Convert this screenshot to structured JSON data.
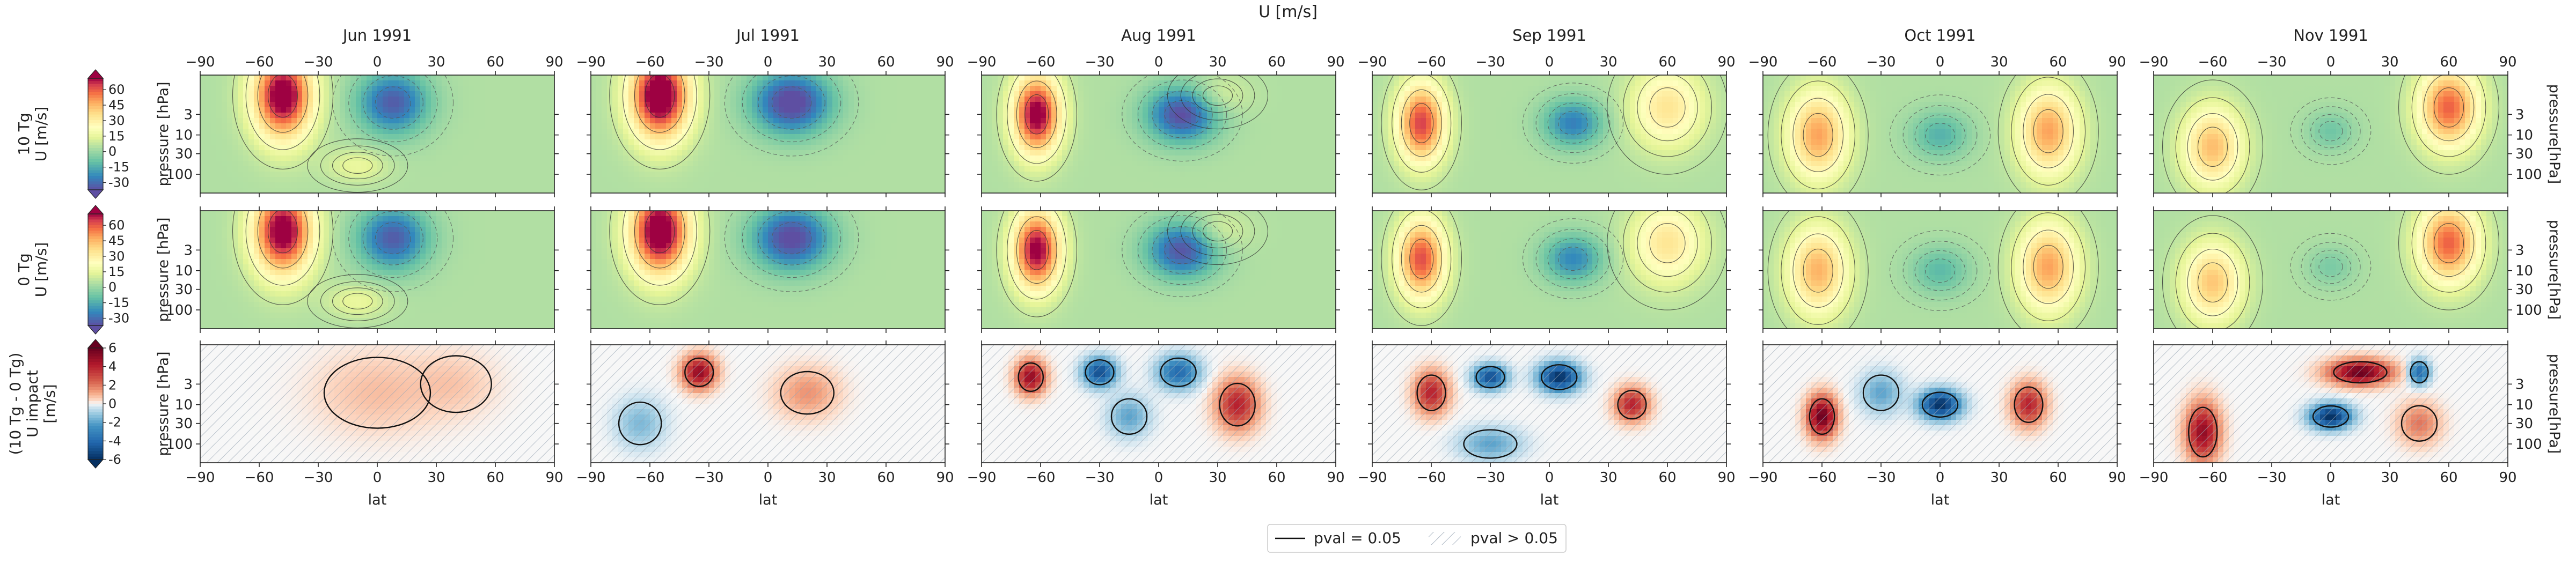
{
  "suptitle": "U [m/s]",
  "months": [
    "Jun 1991",
    "Jul 1991",
    "Aug 1991",
    "Sep 1991",
    "Oct 1991",
    "Nov 1991"
  ],
  "rows": [
    {
      "label_lines": [
        "10 Tg",
        "U [m/s]"
      ],
      "ylabel": "pressure [hPa]",
      "kind": "wind"
    },
    {
      "label_lines": [
        "0 Tg",
        "U [m/s]"
      ],
      "ylabel": "pressure [hPa]",
      "kind": "wind"
    },
    {
      "label_lines": [
        "(10 Tg - 0 Tg)",
        "U impact",
        "[m/s]"
      ],
      "ylabel": "pressure [hPa]",
      "kind": "impact"
    }
  ],
  "right_ylabel": "pressure[hPa]",
  "xlabel": "lat",
  "colorbars": [
    {
      "ticks": [
        "60",
        "45",
        "30",
        "15",
        "0",
        "-15",
        "-30"
      ],
      "range": [
        -37,
        71
      ]
    },
    {
      "ticks": [
        "60",
        "45",
        "30",
        "15",
        "0",
        "-15",
        "-30"
      ],
      "range": [
        -37,
        71
      ]
    },
    {
      "ticks": [
        "6",
        "4",
        "2",
        "0",
        "-2",
        "-4",
        "-6"
      ],
      "range": [
        -6,
        6
      ]
    }
  ],
  "chart_data": {
    "type": "heatmap",
    "x": {
      "label": "lat",
      "ticks": [
        -90,
        -60,
        -30,
        0,
        30,
        60,
        90
      ],
      "tick_labels": [
        "−90",
        "−60",
        "−30",
        "0",
        "30",
        "60",
        "90"
      ],
      "range": [
        -90,
        90
      ]
    },
    "y": {
      "label": "pressure [hPa]",
      "scale": "log",
      "inverted": true,
      "ticks": [
        3,
        10,
        30,
        100
      ],
      "range": [
        0.3,
        300
      ]
    },
    "series": [
      {
        "row": "10 Tg",
        "month": "Jun 1991",
        "features": [
          {
            "lat": -48,
            "p": 1,
            "u": 75,
            "wlat": 15,
            "wdec": 1.1
          },
          {
            "lat": 8,
            "p": 1.5,
            "u": -38,
            "wlat": 18,
            "wdec": 0.8
          },
          {
            "lat": -10,
            "p": 60,
            "u": 12,
            "wlat": 15,
            "wdec": 0.4
          }
        ]
      },
      {
        "row": "10 Tg",
        "month": "Jul 1991",
        "features": [
          {
            "lat": -55,
            "p": 1,
            "u": 80,
            "wlat": 15,
            "wdec": 1.1
          },
          {
            "lat": 12,
            "p": 1.5,
            "u": -45,
            "wlat": 20,
            "wdec": 0.8
          }
        ]
      },
      {
        "row": "10 Tg",
        "month": "Aug 1991",
        "features": [
          {
            "lat": -62,
            "p": 3,
            "u": 72,
            "wlat": 12,
            "wdec": 1
          },
          {
            "lat": 12,
            "p": 3,
            "u": -42,
            "wlat": 18,
            "wdec": 0.7
          },
          {
            "lat": 30,
            "p": 1,
            "u": 10,
            "wlat": 15,
            "wdec": 0.5
          }
        ]
      },
      {
        "row": "10 Tg",
        "month": "Sep 1991",
        "features": [
          {
            "lat": -65,
            "p": 5,
            "u": 60,
            "wlat": 12,
            "wdec": 1
          },
          {
            "lat": 12,
            "p": 5,
            "u": -30,
            "wlat": 15,
            "wdec": 0.6
          },
          {
            "lat": 60,
            "p": 2,
            "u": 30,
            "wlat": 18,
            "wdec": 1
          }
        ]
      },
      {
        "row": "10 Tg",
        "month": "Oct 1991",
        "features": [
          {
            "lat": -62,
            "p": 10,
            "u": 45,
            "wlat": 15,
            "wdec": 1.1
          },
          {
            "lat": 0,
            "p": 10,
            "u": -18,
            "wlat": 15,
            "wdec": 0.6
          },
          {
            "lat": 55,
            "p": 8,
            "u": 45,
            "wlat": 15,
            "wdec": 1.1
          }
        ]
      },
      {
        "row": "10 Tg",
        "month": "Nov 1991",
        "features": [
          {
            "lat": -60,
            "p": 20,
            "u": 40,
            "wlat": 15,
            "wdec": 1
          },
          {
            "lat": 0,
            "p": 8,
            "u": -12,
            "wlat": 12,
            "wdec": 0.5
          },
          {
            "lat": 60,
            "p": 2,
            "u": 55,
            "wlat": 15,
            "wdec": 1
          }
        ]
      },
      {
        "row": "0 Tg",
        "month": "Jun 1991",
        "features": [
          {
            "lat": -48,
            "p": 1,
            "u": 74,
            "wlat": 15,
            "wdec": 1.1
          },
          {
            "lat": 8,
            "p": 1.5,
            "u": -38,
            "wlat": 18,
            "wdec": 0.8
          },
          {
            "lat": -10,
            "p": 60,
            "u": 12,
            "wlat": 15,
            "wdec": 0.4
          }
        ]
      },
      {
        "row": "0 Tg",
        "month": "Jul 1991",
        "features": [
          {
            "lat": -55,
            "p": 1,
            "u": 78,
            "wlat": 15,
            "wdec": 1.1
          },
          {
            "lat": 12,
            "p": 1.5,
            "u": -43,
            "wlat": 20,
            "wdec": 0.8
          }
        ]
      },
      {
        "row": "0 Tg",
        "month": "Aug 1991",
        "features": [
          {
            "lat": -62,
            "p": 3,
            "u": 70,
            "wlat": 12,
            "wdec": 1
          },
          {
            "lat": 12,
            "p": 3,
            "u": -40,
            "wlat": 18,
            "wdec": 0.7
          },
          {
            "lat": 30,
            "p": 1,
            "u": 10,
            "wlat": 15,
            "wdec": 0.5
          }
        ]
      },
      {
        "row": "0 Tg",
        "month": "Sep 1991",
        "features": [
          {
            "lat": -65,
            "p": 5,
            "u": 58,
            "wlat": 12,
            "wdec": 1
          },
          {
            "lat": 12,
            "p": 5,
            "u": -28,
            "wlat": 15,
            "wdec": 0.6
          },
          {
            "lat": 60,
            "p": 2,
            "u": 30,
            "wlat": 18,
            "wdec": 1
          }
        ]
      },
      {
        "row": "0 Tg",
        "month": "Oct 1991",
        "features": [
          {
            "lat": -62,
            "p": 10,
            "u": 42,
            "wlat": 15,
            "wdec": 1.1
          },
          {
            "lat": 0,
            "p": 10,
            "u": -16,
            "wlat": 15,
            "wdec": 0.6
          },
          {
            "lat": 55,
            "p": 8,
            "u": 45,
            "wlat": 15,
            "wdec": 1.1
          }
        ]
      },
      {
        "row": "0 Tg",
        "month": "Nov 1991",
        "features": [
          {
            "lat": -60,
            "p": 20,
            "u": 38,
            "wlat": 15,
            "wdec": 1
          },
          {
            "lat": 0,
            "p": 8,
            "u": -10,
            "wlat": 12,
            "wdec": 0.5
          },
          {
            "lat": 60,
            "p": 2,
            "u": 55,
            "wlat": 15,
            "wdec": 1
          }
        ]
      },
      {
        "row": "10 Tg - 0 Tg",
        "month": "Jun 1991",
        "features": [
          {
            "lat": 0,
            "p": 5,
            "u": 0.8,
            "wlat": 30,
            "wdec": 1
          },
          {
            "lat": 40,
            "p": 3,
            "u": 0.6,
            "wlat": 20,
            "wdec": 0.8
          }
        ]
      },
      {
        "row": "10 Tg - 0 Tg",
        "month": "Jul 1991",
        "features": [
          {
            "lat": -35,
            "p": 1.5,
            "u": 5,
            "wlat": 8,
            "wdec": 0.4
          },
          {
            "lat": -65,
            "p": 30,
            "u": -1.5,
            "wlat": 12,
            "wdec": 0.6
          },
          {
            "lat": 20,
            "p": 5,
            "u": 1.5,
            "wlat": 15,
            "wdec": 0.6
          }
        ]
      },
      {
        "row": "10 Tg - 0 Tg",
        "month": "Aug 1991",
        "features": [
          {
            "lat": -65,
            "p": 2,
            "u": 5,
            "wlat": 7,
            "wdec": 0.4
          },
          {
            "lat": -30,
            "p": 1.5,
            "u": -5,
            "wlat": 8,
            "wdec": 0.35
          },
          {
            "lat": 10,
            "p": 1.5,
            "u": -4,
            "wlat": 10,
            "wdec": 0.4
          },
          {
            "lat": 40,
            "p": 10,
            "u": 4,
            "wlat": 10,
            "wdec": 0.6
          },
          {
            "lat": -15,
            "p": 20,
            "u": -2,
            "wlat": 10,
            "wdec": 0.5
          }
        ]
      },
      {
        "row": "10 Tg - 0 Tg",
        "month": "Sep 1991",
        "features": [
          {
            "lat": -60,
            "p": 5,
            "u": 4,
            "wlat": 8,
            "wdec": 0.5
          },
          {
            "lat": -30,
            "p": 2,
            "u": -5,
            "wlat": 8,
            "wdec": 0.3
          },
          {
            "lat": 5,
            "p": 2,
            "u": -6,
            "wlat": 10,
            "wdec": 0.35
          },
          {
            "lat": 42,
            "p": 10,
            "u": 4,
            "wlat": 8,
            "wdec": 0.4
          },
          {
            "lat": -30,
            "p": 100,
            "u": -2,
            "wlat": 15,
            "wdec": 0.4
          }
        ]
      },
      {
        "row": "10 Tg - 0 Tg",
        "month": "Oct 1991",
        "features": [
          {
            "lat": -60,
            "p": 20,
            "u": 6,
            "wlat": 7,
            "wdec": 0.5
          },
          {
            "lat": 0,
            "p": 10,
            "u": -6,
            "wlat": 10,
            "wdec": 0.35
          },
          {
            "lat": 45,
            "p": 10,
            "u": 4,
            "wlat": 8,
            "wdec": 0.5
          },
          {
            "lat": -30,
            "p": 5,
            "u": -2,
            "wlat": 10,
            "wdec": 0.5
          }
        ]
      },
      {
        "row": "10 Tg - 0 Tg",
        "month": "Nov 1991",
        "features": [
          {
            "lat": 15,
            "p": 1.5,
            "u": 6,
            "wlat": 15,
            "wdec": 0.3
          },
          {
            "lat": 45,
            "p": 1.5,
            "u": -4,
            "wlat": 5,
            "wdec": 0.3
          },
          {
            "lat": 0,
            "p": 20,
            "u": -6,
            "wlat": 10,
            "wdec": 0.3
          },
          {
            "lat": -65,
            "p": 50,
            "u": 5,
            "wlat": 8,
            "wdec": 0.7
          },
          {
            "lat": 45,
            "p": 30,
            "u": 2,
            "wlat": 10,
            "wdec": 0.5
          }
        ]
      }
    ]
  },
  "legend": {
    "entries": [
      {
        "label": "pval = 0.05",
        "style": "solid"
      },
      {
        "label": "pval > 0.05",
        "style": "hatch"
      }
    ]
  },
  "colors": {
    "wind_low": "#5e4fa2",
    "wind_mid": "#ffffbf",
    "wind_high": "#9e0142",
    "impact_low": "#053061",
    "impact_high": "#67001f"
  }
}
